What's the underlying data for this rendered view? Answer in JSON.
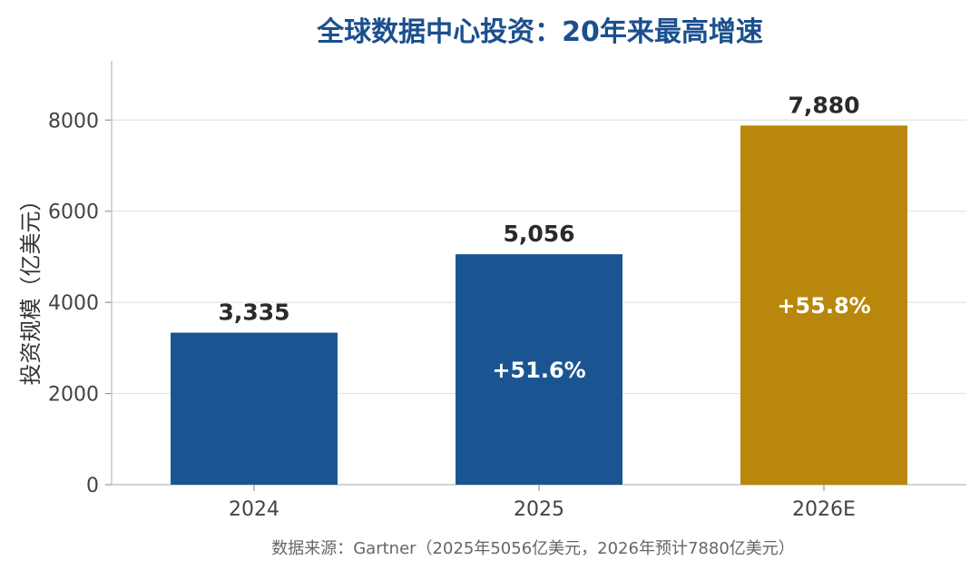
{
  "chart_data": {
    "type": "bar",
    "title": "全球数据中心投资：20年来最高增速",
    "ylabel": "投资规模（亿美元）",
    "xlabel": "",
    "categories": [
      "2024",
      "2025",
      "2026E"
    ],
    "values": [
      3335,
      5056,
      7880
    ],
    "value_labels": [
      "3,335",
      "5,056",
      "7,880"
    ],
    "growth_labels": [
      "",
      "+51.6%",
      "+55.8%"
    ],
    "bar_colors": [
      "#1b5591",
      "#1b5591",
      "#b8870b"
    ],
    "ylim": [
      0,
      9300
    ],
    "yticks": [
      0,
      2000,
      4000,
      6000,
      8000
    ],
    "grid": true,
    "source": "数据来源：Gartner（2025年5056亿美元，2026年预计7880亿美元）"
  }
}
